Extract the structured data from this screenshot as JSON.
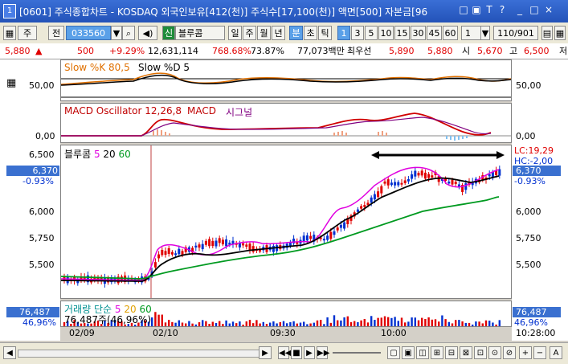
{
  "window": {
    "title": "[0601] 주식종합차트 - KOSDAQ 외국인보유[412(천)] 주식수[17,100(천)] 액면[500] 자본금[96",
    "app_icon": "1",
    "buttons": [
      "□",
      "▣",
      "T",
      "?",
      "_",
      "□",
      "×"
    ]
  },
  "toolbar": {
    "type_select": "주",
    "market": "전",
    "code": "033560",
    "stock_badge": "신",
    "stock_name": "블루콤",
    "periods": [
      "일",
      "주",
      "월",
      "년",
      "분",
      "초",
      "틱"
    ],
    "active_period": "분",
    "intervals": [
      "1",
      "3",
      "5",
      "10",
      "15",
      "30",
      "45",
      "60"
    ],
    "active_interval": "1",
    "count_select": "1",
    "page_count": "110/901"
  },
  "infoline": {
    "price": "5,880",
    "change_arrow": "▲",
    "change": "500",
    "change_pct": "+9.29%",
    "volume": "12,631,114",
    "vol_ratio": "768.68%",
    "rate": "73.87%",
    "amount": "77,073백만",
    "best_ask_label": "최우선",
    "best_ask": "5,890",
    "best_bid": "5,880",
    "open_label": "시",
    "open": "5,670",
    "high_label": "고",
    "high": "6,500",
    "low_label": "저"
  },
  "stoch": {
    "label1": "Slow %K 80,5",
    "label2": "Slow %D 5",
    "axis": "50,00",
    "axis_r": "50,00"
  },
  "macd": {
    "label1": "MACD Oscillator 12,26,8",
    "label2": "MACD",
    "label3": "시그널",
    "axis": "0,00",
    "axis_r": "0,00"
  },
  "price": {
    "name": "블루콤",
    "ma1": "5",
    "ma2": "20",
    "ma3": "60",
    "levels": [
      "6,500",
      "6,370",
      "6,000",
      "5,750",
      "5,500"
    ],
    "current": "6,370",
    "current_pct": "-0.93%",
    "lc": "LC:19,29",
    "hc": "HC:-2,00",
    "right_levels": [
      "6,000",
      "5,750",
      "5,500"
    ]
  },
  "volume": {
    "label": "거래량",
    "ma_label": "단순",
    "ma1": "5",
    "ma2": "20",
    "ma3": "60",
    "last": "76,487주(46,96%)",
    "left_value": "76,487",
    "left_pct": "46,96%"
  },
  "xaxis": {
    "d1": "02/09",
    "d2": "02/10",
    "t1": "09:30",
    "t2": "10:00",
    "time": "10:28:00"
  },
  "colors": {
    "up": "#e00000",
    "down": "#0030d0",
    "ma5": "#e000e0",
    "ma20": "#000000",
    "ma60": "#009a20",
    "accent": "#3a70d0"
  }
}
